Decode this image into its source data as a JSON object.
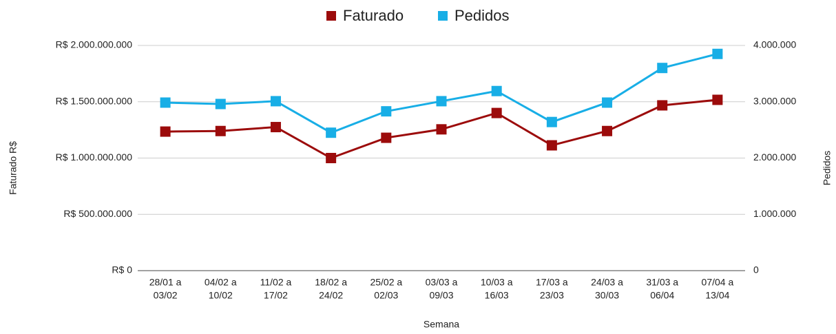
{
  "chart_data": {
    "type": "line",
    "x_label": "Semana",
    "y_label": "Faturado R$",
    "y2_label": "Pedidos",
    "categories": [
      [
        "28/01 a",
        "03/02"
      ],
      [
        "04/02 a",
        "10/02"
      ],
      [
        "11/02 a",
        "17/02"
      ],
      [
        "18/02 a",
        "24/02"
      ],
      [
        "25/02 a",
        "02/03"
      ],
      [
        "03/03 a",
        "09/03"
      ],
      [
        "10/03 a",
        "16/03"
      ],
      [
        "17/03 a",
        "23/03"
      ],
      [
        "24/03 a",
        "30/03"
      ],
      [
        "31/03 a",
        "06/04"
      ],
      [
        "07/04 a",
        "13/04"
      ]
    ],
    "series": [
      {
        "name": "Faturado",
        "color": "#9c0b0b",
        "values": [
          1235000000,
          1240000000,
          1275000000,
          1000000000,
          1180000000,
          1255000000,
          1400000000,
          1113000000,
          1240000000,
          1468000000,
          1517000000
        ]
      },
      {
        "name": "Pedidos",
        "color": "#18aee6",
        "axis": "y2",
        "values": [
          2985000,
          2960000,
          3010000,
          2450000,
          2830000,
          3010000,
          3190000,
          2640000,
          2985000,
          3600000,
          3850000
        ]
      }
    ],
    "ylim": [
      0,
      2000000000
    ],
    "yticks": [
      {
        "value": 0,
        "label": "R$ 0"
      },
      {
        "value": 500000000,
        "label": "R$ 500.000.000"
      },
      {
        "value": 1000000000,
        "label": "R$ 1.000.000.000"
      },
      {
        "value": 1500000000,
        "label": "R$ 1.500.000.000"
      },
      {
        "value": 2000000000,
        "label": "R$ 2.000.000.000"
      }
    ],
    "y2lim": [
      0,
      4000000
    ],
    "y2ticks": [
      0,
      {
        "value": 1000000,
        "label": "1.000.000"
      },
      {
        "value": 2000000,
        "label": "2.000.000"
      },
      {
        "value": 3000000,
        "label": "3.000.000"
      },
      {
        "value": 4000000,
        "label": "4.000.000"
      }
    ],
    "grid": true,
    "legend": "top"
  }
}
